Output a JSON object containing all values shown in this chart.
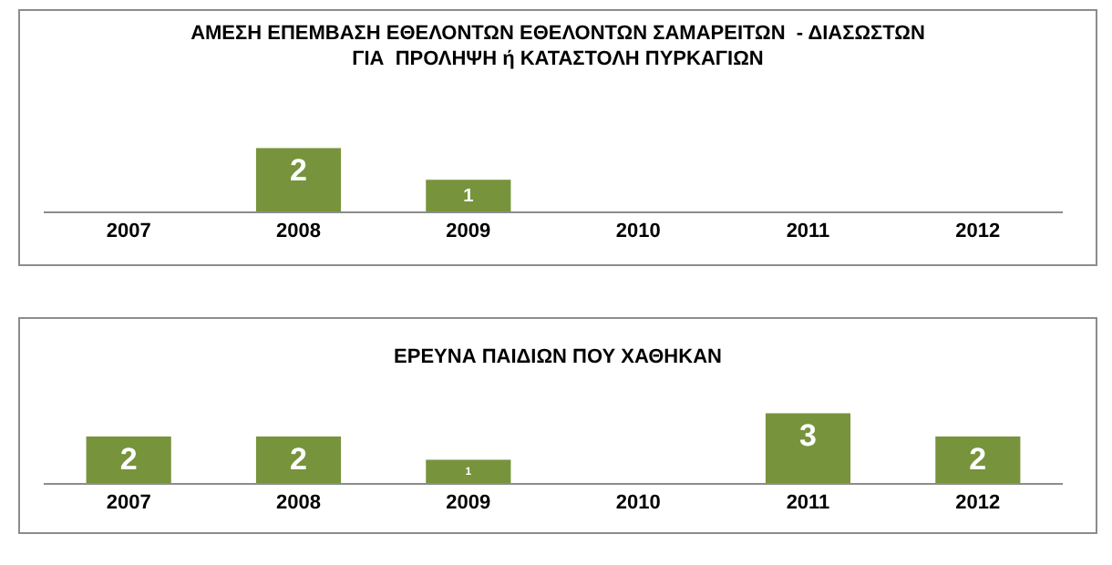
{
  "chart_data": [
    {
      "type": "bar",
      "title": "ΑΜΕΣΗ ΕΠΕΜΒΑΣΗ ΕΘΕΛΟΝΤΩΝ ΕΘΕΛΟΝΤΩΝ ΣΑΜΑΡΕΙΤΩΝ  - ΔΙΑΣΩΣΤΩΝ\nΓΙΑ  ΠΡΟΛΗΨΗ ή ΚΑΤΑΣΤΟΛΗ ΠΥΡΚΑΓΙΩΝ",
      "categories": [
        "2007",
        "2008",
        "2009",
        "2010",
        "2011",
        "2012"
      ],
      "values": [
        0,
        2,
        1,
        0,
        0,
        0
      ],
      "value_labels": [
        null,
        "2",
        "1",
        null,
        null,
        null
      ],
      "color": "#77933c",
      "grid": false,
      "tick_labels": "x"
    },
    {
      "type": "bar",
      "title": "ΕΡΕΥΝΑ ΠΑΙΔΙΩΝ ΠΟΥ ΧΑΘΗΚΑΝ",
      "categories": [
        "2007",
        "2008",
        "2009",
        "2010",
        "2011",
        "2012"
      ],
      "values": [
        2,
        2,
        1,
        0,
        3,
        2
      ],
      "value_labels": [
        "2",
        "2",
        "1",
        null,
        "3",
        "2"
      ],
      "color": "#77933c",
      "grid": false,
      "tick_labels": "x"
    }
  ]
}
